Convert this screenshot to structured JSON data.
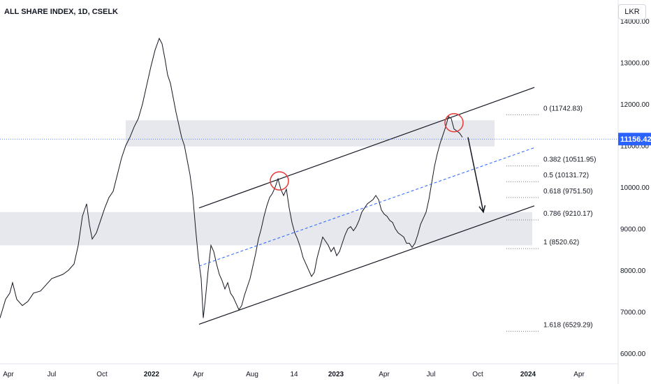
{
  "header": {
    "title": "ALL SHARE INDEX, 1D, CSELK",
    "currency": "LKR"
  },
  "price_badge": "11156.42",
  "chart_data": {
    "type": "line",
    "title": "ALL SHARE INDEX, 1D, CSELK",
    "yaxis": {
      "ticks": [
        "14000.00",
        "13000.00",
        "12000.00",
        "11000.00",
        "10000.00",
        "9000.00",
        "8000.00",
        "7000.00",
        "6000.00"
      ],
      "range": [
        5800,
        14000
      ]
    },
    "xaxis": {
      "ticks": [
        "Apr",
        "Jul",
        "Oct",
        "2022",
        "Apr",
        "Aug",
        "14",
        "2023",
        "Apr",
        "Jul",
        "Oct",
        "2024",
        "Apr"
      ]
    },
    "series": [
      {
        "values": [
          [
            0,
            6850
          ],
          [
            8,
            7300
          ],
          [
            14,
            7450
          ],
          [
            18,
            7700
          ],
          [
            24,
            7300
          ],
          [
            32,
            7150
          ],
          [
            40,
            7250
          ],
          [
            48,
            7450
          ],
          [
            58,
            7500
          ],
          [
            66,
            7650
          ],
          [
            74,
            7800
          ],
          [
            82,
            7850
          ],
          [
            90,
            7900
          ],
          [
            98,
            8000
          ],
          [
            106,
            8150
          ],
          [
            112,
            8600
          ],
          [
            118,
            9300
          ],
          [
            124,
            9600
          ],
          [
            128,
            9100
          ],
          [
            132,
            8750
          ],
          [
            138,
            8900
          ],
          [
            144,
            9200
          ],
          [
            150,
            9500
          ],
          [
            156,
            9750
          ],
          [
            162,
            9900
          ],
          [
            168,
            10300
          ],
          [
            174,
            10700
          ],
          [
            180,
            11000
          ],
          [
            186,
            11200
          ],
          [
            192,
            11450
          ],
          [
            198,
            11650
          ],
          [
            204,
            12000
          ],
          [
            210,
            12450
          ],
          [
            216,
            12900
          ],
          [
            222,
            13300
          ],
          [
            228,
            13580
          ],
          [
            232,
            13450
          ],
          [
            236,
            13100
          ],
          [
            240,
            12700
          ],
          [
            244,
            12500
          ],
          [
            248,
            12150
          ],
          [
            252,
            11800
          ],
          [
            256,
            11500
          ],
          [
            260,
            11200
          ],
          [
            264,
            11000
          ],
          [
            268,
            10650
          ],
          [
            272,
            10300
          ],
          [
            276,
            9800
          ],
          [
            280,
            9000
          ],
          [
            284,
            8300
          ],
          [
            288,
            7800
          ],
          [
            291,
            6850
          ],
          [
            294,
            7300
          ],
          [
            298,
            8000
          ],
          [
            302,
            8600
          ],
          [
            306,
            8450
          ],
          [
            310,
            8150
          ],
          [
            314,
            7900
          ],
          [
            318,
            7750
          ],
          [
            322,
            7550
          ],
          [
            326,
            7700
          ],
          [
            330,
            7450
          ],
          [
            334,
            7350
          ],
          [
            338,
            7200
          ],
          [
            342,
            7050
          ],
          [
            346,
            7150
          ],
          [
            350,
            7400
          ],
          [
            354,
            7600
          ],
          [
            358,
            7800
          ],
          [
            362,
            8100
          ],
          [
            366,
            8400
          ],
          [
            370,
            8750
          ],
          [
            374,
            9000
          ],
          [
            378,
            9300
          ],
          [
            382,
            9550
          ],
          [
            386,
            9750
          ],
          [
            390,
            9850
          ],
          [
            394,
            10000
          ],
          [
            398,
            10200
          ],
          [
            402,
            9950
          ],
          [
            406,
            9800
          ],
          [
            410,
            9950
          ],
          [
            414,
            9500
          ],
          [
            418,
            9150
          ],
          [
            422,
            8900
          ],
          [
            426,
            8750
          ],
          [
            430,
            8550
          ],
          [
            434,
            8300
          ],
          [
            438,
            8150
          ],
          [
            442,
            8000
          ],
          [
            446,
            7850
          ],
          [
            450,
            7950
          ],
          [
            454,
            8300
          ],
          [
            458,
            8550
          ],
          [
            462,
            8800
          ],
          [
            466,
            8700
          ],
          [
            470,
            8600
          ],
          [
            474,
            8450
          ],
          [
            478,
            8550
          ],
          [
            482,
            8350
          ],
          [
            486,
            8450
          ],
          [
            490,
            8650
          ],
          [
            494,
            8850
          ],
          [
            498,
            9000
          ],
          [
            502,
            9050
          ],
          [
            506,
            8950
          ],
          [
            510,
            9050
          ],
          [
            514,
            9200
          ],
          [
            518,
            9400
          ],
          [
            522,
            9500
          ],
          [
            526,
            9600
          ],
          [
            530,
            9650
          ],
          [
            534,
            9700
          ],
          [
            538,
            9800
          ],
          [
            542,
            9700
          ],
          [
            546,
            9450
          ],
          [
            550,
            9350
          ],
          [
            554,
            9300
          ],
          [
            558,
            9200
          ],
          [
            562,
            9150
          ],
          [
            566,
            9000
          ],
          [
            570,
            8900
          ],
          [
            574,
            8850
          ],
          [
            578,
            8800
          ],
          [
            582,
            8650
          ],
          [
            586,
            8650
          ],
          [
            590,
            8550
          ],
          [
            594,
            8650
          ],
          [
            598,
            8850
          ],
          [
            602,
            9100
          ],
          [
            606,
            9250
          ],
          [
            610,
            9400
          ],
          [
            614,
            9700
          ],
          [
            618,
            10100
          ],
          [
            622,
            10500
          ],
          [
            626,
            10800
          ],
          [
            630,
            11050
          ],
          [
            634,
            11250
          ],
          [
            638,
            11450
          ],
          [
            642,
            11700
          ],
          [
            646,
            11650
          ],
          [
            650,
            11400
          ],
          [
            654,
            11350
          ],
          [
            658,
            11300
          ],
          [
            662,
            11200
          ]
        ]
      }
    ],
    "channel": {
      "upper": [
        [
          285,
          9500
        ],
        [
          765,
          12400
        ]
      ],
      "lower": [
        [
          285,
          6700
        ],
        [
          765,
          9550
        ]
      ],
      "mid_dashed": [
        [
          285,
          8100
        ],
        [
          765,
          10950
        ]
      ]
    },
    "zones": [
      {
        "from": 10980,
        "to": 11610,
        "x_start": 180,
        "x_end": 708
      },
      {
        "from": 8600,
        "to": 9400,
        "x_start": 0,
        "x_end": 762
      }
    ],
    "fib_levels": [
      {
        "ratio": "0",
        "value": "11742.83",
        "label": "0 (11742.83)"
      },
      {
        "ratio": "0.382",
        "value": "10511.95",
        "label": "0.382 (10511.95)"
      },
      {
        "ratio": "0.5",
        "value": "10131.72",
        "label": "0.5 (10131.72)"
      },
      {
        "ratio": "0.618",
        "value": "9751.50",
        "label": "0.618 (9751.50)"
      },
      {
        "ratio": "0.786",
        "value": "9210.17",
        "label": "0.786 (9210.17)"
      },
      {
        "ratio": "1",
        "value": "8520.62",
        "label": "1 (8520.62)"
      },
      {
        "ratio": "1.618",
        "value": "6529.29",
        "label": "1.618 (6529.29)"
      }
    ],
    "last_price": 11156.42,
    "annotations": {
      "circles": [
        [
          400,
          10150
        ],
        [
          650,
          11550
        ]
      ],
      "arrow": [
        [
          670,
          11200
        ],
        [
          692,
          9400
        ]
      ]
    },
    "grid": false
  },
  "colors": {
    "line": "#131722",
    "zone": "#e7e8ee",
    "dashed": "#2962ff",
    "circle": "#e53935",
    "badge": "#2962ff"
  }
}
